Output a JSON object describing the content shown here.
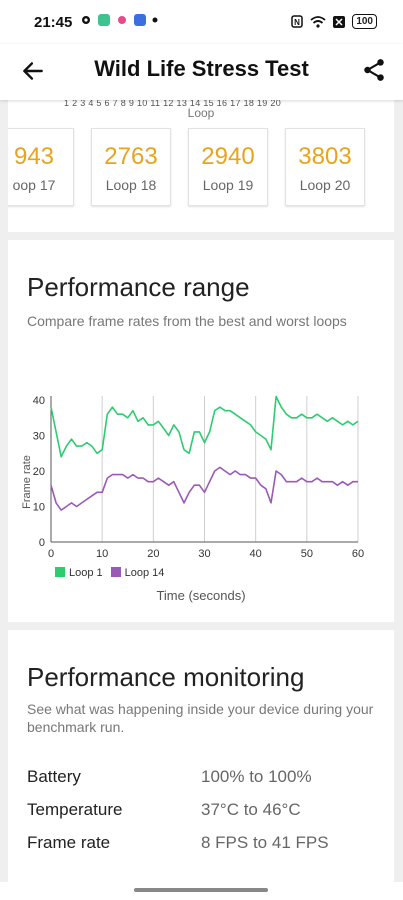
{
  "status_bar": {
    "time": "21:45",
    "battery": "100",
    "icons": [
      "gear-icon",
      "app-note-icon",
      "app-star-icon",
      "app-chat-icon",
      "dot-icon",
      "nfc-icon",
      "wifi-icon",
      "x-mark-icon",
      "battery-icon"
    ]
  },
  "app_bar": {
    "title": "Wild Life Stress Test",
    "back_icon": "arrow-left-icon",
    "share_icon": "share-icon"
  },
  "scores_card": {
    "axis_caption": "Loop",
    "axis_ticks": "1 2 3 4 5 6 7 8 9 10 11 12 13 14 15 16 17 18 19 20",
    "tiles": [
      {
        "score": "943",
        "loop": "oop 17"
      },
      {
        "score": "2763",
        "loop": "Loop 18"
      },
      {
        "score": "2940",
        "loop": "Loop 19"
      },
      {
        "score": "3803",
        "loop": "Loop 20"
      }
    ],
    "score_color": "#e7a41f"
  },
  "performance_range": {
    "title": "Performance range",
    "subtitle": "Compare frame rates from the best and worst loops",
    "chart_data": {
      "type": "line",
      "xlabel": "Time (seconds)",
      "ylabel": "Frame rate",
      "xlim": [
        0,
        60
      ],
      "ylim": [
        0,
        40
      ],
      "xticks": [
        "0",
        "10",
        "20",
        "30",
        "40",
        "50",
        "60"
      ],
      "yticks": [
        "0",
        "10",
        "20",
        "30",
        "40"
      ],
      "grid": "vertical",
      "legend": "bottom-left",
      "series": [
        {
          "name": "Loop 1",
          "color": "#2ecc71",
          "x": [
            0,
            1,
            2,
            3,
            4,
            5,
            6,
            7,
            8,
            9,
            10,
            11,
            12,
            13,
            14,
            15,
            16,
            17,
            18,
            19,
            20,
            21,
            22,
            23,
            24,
            25,
            26,
            27,
            28,
            29,
            30,
            31,
            32,
            33,
            34,
            35,
            36,
            37,
            38,
            39,
            40,
            41,
            42,
            43,
            44,
            45,
            46,
            47,
            48,
            49,
            50,
            51,
            52,
            53,
            54,
            55,
            56,
            57,
            58,
            59,
            60
          ],
          "y": [
            38,
            31,
            24,
            27,
            29,
            27,
            27,
            28,
            27,
            25,
            26,
            36,
            38,
            36,
            36,
            35,
            37,
            34,
            35,
            33,
            33,
            34,
            32,
            30,
            33,
            31,
            26,
            25,
            31,
            31,
            28,
            31,
            37,
            38,
            37,
            37,
            36,
            35,
            34,
            33,
            31,
            30,
            29,
            26,
            41,
            38,
            36,
            35,
            35,
            36,
            35,
            35,
            36,
            35,
            34,
            35,
            34,
            33,
            34,
            33,
            34
          ]
        },
        {
          "name": "Loop 14",
          "color": "#9b59b6",
          "x": [
            0,
            1,
            2,
            3,
            4,
            5,
            6,
            7,
            8,
            9,
            10,
            11,
            12,
            13,
            14,
            15,
            16,
            17,
            18,
            19,
            20,
            21,
            22,
            23,
            24,
            25,
            26,
            27,
            28,
            29,
            30,
            31,
            32,
            33,
            34,
            35,
            36,
            37,
            38,
            39,
            40,
            41,
            42,
            43,
            44,
            45,
            46,
            47,
            48,
            49,
            50,
            51,
            52,
            53,
            54,
            55,
            56,
            57,
            58,
            59,
            60
          ],
          "y": [
            16,
            11,
            9,
            10,
            11,
            10,
            11,
            12,
            13,
            14,
            14,
            18,
            19,
            19,
            19,
            18,
            19,
            18,
            18,
            17,
            17,
            18,
            17,
            16,
            17,
            14,
            11,
            14,
            16,
            16,
            14,
            17,
            20,
            21,
            20,
            19,
            20,
            19,
            19,
            18,
            18,
            16,
            15,
            11,
            20,
            19,
            17,
            17,
            17,
            18,
            17,
            17,
            18,
            17,
            17,
            17,
            16,
            17,
            16,
            17,
            17
          ]
        }
      ]
    }
  },
  "performance_monitoring": {
    "title": "Performance monitoring",
    "subtitle": "See what was happening inside your device during your benchmark run.",
    "rows": [
      {
        "label": "Battery",
        "value": "100% to 100%"
      },
      {
        "label": "Temperature",
        "value": "37°C to 46°C"
      },
      {
        "label": "Frame rate",
        "value": "8 FPS to 41 FPS"
      }
    ]
  }
}
